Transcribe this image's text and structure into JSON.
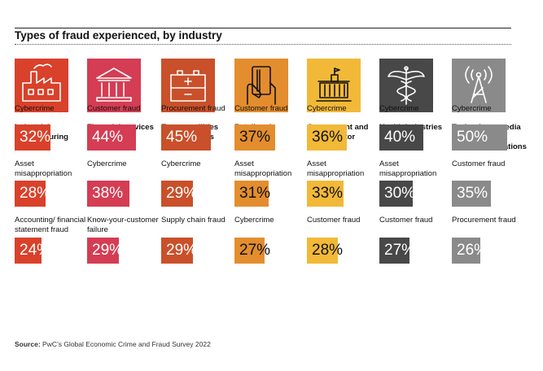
{
  "title": "Types of fraud experienced, by industry",
  "source_label": "Source:",
  "source_text": "PwC’s Global Economic Crime and Fraud Survey 2022",
  "chart_data": {
    "type": "bar",
    "title": "Types of fraud experienced, by industry",
    "unit": "%",
    "industries": [
      {
        "name": "Industrial manufacturing",
        "icon": "factory-icon",
        "color": "#d9412a",
        "text_color": "#ffffff",
        "items": [
          {
            "label": "Cybercrime",
            "value": 32
          },
          {
            "label": "Asset misappropriation",
            "value": 28
          },
          {
            "label": "Accounting/ financial statement fraud",
            "value": 24
          }
        ]
      },
      {
        "name": "Financial services",
        "icon": "bank-icon",
        "color": "#d43d53",
        "text_color": "#ffffff",
        "items": [
          {
            "label": "Customer fraud",
            "value": 44
          },
          {
            "label": "Cybercrime",
            "value": 38
          },
          {
            "label": "Know-your-customer failure",
            "value": 29
          }
        ]
      },
      {
        "name": "Energy, utilities and resources",
        "icon": "battery-icon",
        "color": "#c9502a",
        "text_color": "#ffffff",
        "items": [
          {
            "label": "Procurement fraud",
            "value": 45
          },
          {
            "label": "Cybercrime",
            "value": 29
          },
          {
            "label": "Supply chain fraud",
            "value": 29
          }
        ]
      },
      {
        "name": "Retail and consumer",
        "icon": "card-in-hand-icon",
        "color": "#e38d2e",
        "text_color": "#111111",
        "items": [
          {
            "label": "Customer fraud",
            "value": 37
          },
          {
            "label": "Asset misappropriation",
            "value": 31
          },
          {
            "label": "Cybercrime",
            "value": 27
          }
        ]
      },
      {
        "name": "Government and public sector",
        "icon": "government-building-icon",
        "color": "#f2b938",
        "text_color": "#111111",
        "items": [
          {
            "label": "Cybercrime",
            "value": 36
          },
          {
            "label": "Asset misappropriation",
            "value": 33
          },
          {
            "label": "Customer fraud",
            "value": 28
          }
        ]
      },
      {
        "name": "Health industries",
        "icon": "caduceus-icon",
        "color": "#484848",
        "text_color": "#ffffff",
        "items": [
          {
            "label": "Cybercrime",
            "value": 40
          },
          {
            "label": "Asset misappropriation",
            "value": 30
          },
          {
            "label": "Customer fraud",
            "value": 27
          }
        ]
      },
      {
        "name": "Technology, media and telecommunications",
        "icon": "radio-tower-icon",
        "color": "#8a8a8a",
        "text_color": "#ffffff",
        "items": [
          {
            "label": "Cybercrime",
            "value": 50
          },
          {
            "label": "Customer fraud",
            "value": 35
          },
          {
            "label": "Procurement fraud",
            "value": 26
          }
        ]
      }
    ]
  }
}
